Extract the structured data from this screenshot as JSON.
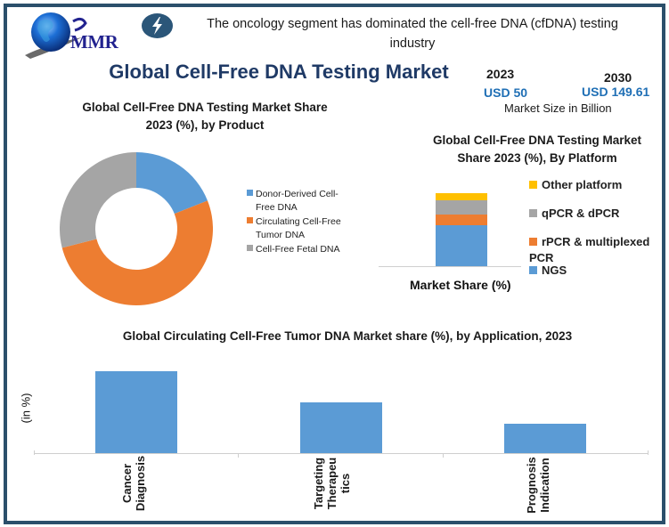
{
  "header": {
    "logo_text": "MMR",
    "headline": "The oncology segment has dominated the cell-free DNA (cfDNA) testing industry",
    "title": "Global Cell-Free DNA Testing Market"
  },
  "market_size": {
    "year_start": "2023",
    "value_start": "USD 50",
    "year_end": "2030",
    "value_end": "USD 149.61",
    "caption": "Market Size in Billion"
  },
  "colors": {
    "blue": "#5b9bd5",
    "orange": "#ed7d31",
    "gray": "#a5a5a5",
    "yellow": "#ffc000",
    "frame": "#2b4f6b",
    "title": "#1f3a66",
    "usd": "#1f6fb5"
  },
  "chart_data": [
    {
      "type": "pie",
      "variant": "donut",
      "title": "Global Cell-Free DNA Testing Market Share 2023 (%), by Product",
      "title_line1": "Global Cell-Free DNA Testing Market Share",
      "title_line2": "2023 (%), by Product",
      "categories": [
        "Donor-Derived Cell-Free DNA",
        "Circulating Cell-Free Tumor DNA",
        "Cell-Free Fetal DNA"
      ],
      "values": [
        19,
        52,
        29
      ],
      "colors": [
        "#5b9bd5",
        "#ed7d31",
        "#a5a5a5"
      ],
      "legend": [
        {
          "line1": "Donor-Derived Cell-",
          "line2": "Free DNA"
        },
        {
          "line1": "Circulating Cell-Free",
          "line2": "Tumor DNA"
        },
        {
          "line1": "Cell-Free Fetal DNA",
          "line2": ""
        }
      ],
      "legend_position": "right"
    },
    {
      "type": "bar",
      "variant": "stacked",
      "title": "Global Cell-Free DNA Testing Market Share 2023 (%), By Platform",
      "title_line1": "Global Cell-Free DNA Testing Market",
      "title_line2": "Share 2023 (%), By Platform",
      "categories": [
        "Market Share (%)"
      ],
      "xlabel": "Market Share (%)",
      "series": [
        {
          "name": "NGS",
          "values": [
            56
          ],
          "color": "#5b9bd5"
        },
        {
          "name": "rPCR & multiplexed PCR",
          "values": [
            15
          ],
          "color": "#ed7d31"
        },
        {
          "name": "qPCR & dPCR",
          "values": [
            19
          ],
          "color": "#a5a5a5"
        },
        {
          "name": "Other platform",
          "values": [
            10
          ],
          "color": "#ffc000"
        }
      ],
      "legend": [
        {
          "label": "Other platform"
        },
        {
          "label": "qPCR & dPCR"
        },
        {
          "label": "rPCR & multiplexed",
          "label2": "PCR"
        },
        {
          "label": "NGS"
        }
      ],
      "ylim": [
        0,
        100
      ],
      "legend_position": "right"
    },
    {
      "type": "bar",
      "title": "Global Circulating Cell-Free  Tumor DNA Market share (%), by Application, 2023",
      "categories": [
        "Cancer Diagnosis",
        "Targeting Therapeutics",
        "Prognosis Indication"
      ],
      "category_labels": [
        {
          "line1": "Cancer",
          "line2": "Diagnosis",
          "line3": ""
        },
        {
          "line1": "Targeting",
          "line2": "Therapeu",
          "line3": "tics"
        },
        {
          "line1": "Prognosis",
          "line2": "Indication",
          "line3": ""
        }
      ],
      "values": [
        50,
        31,
        18
      ],
      "ylabel": "(in %)",
      "xlabel": "",
      "grid": false
    }
  ]
}
